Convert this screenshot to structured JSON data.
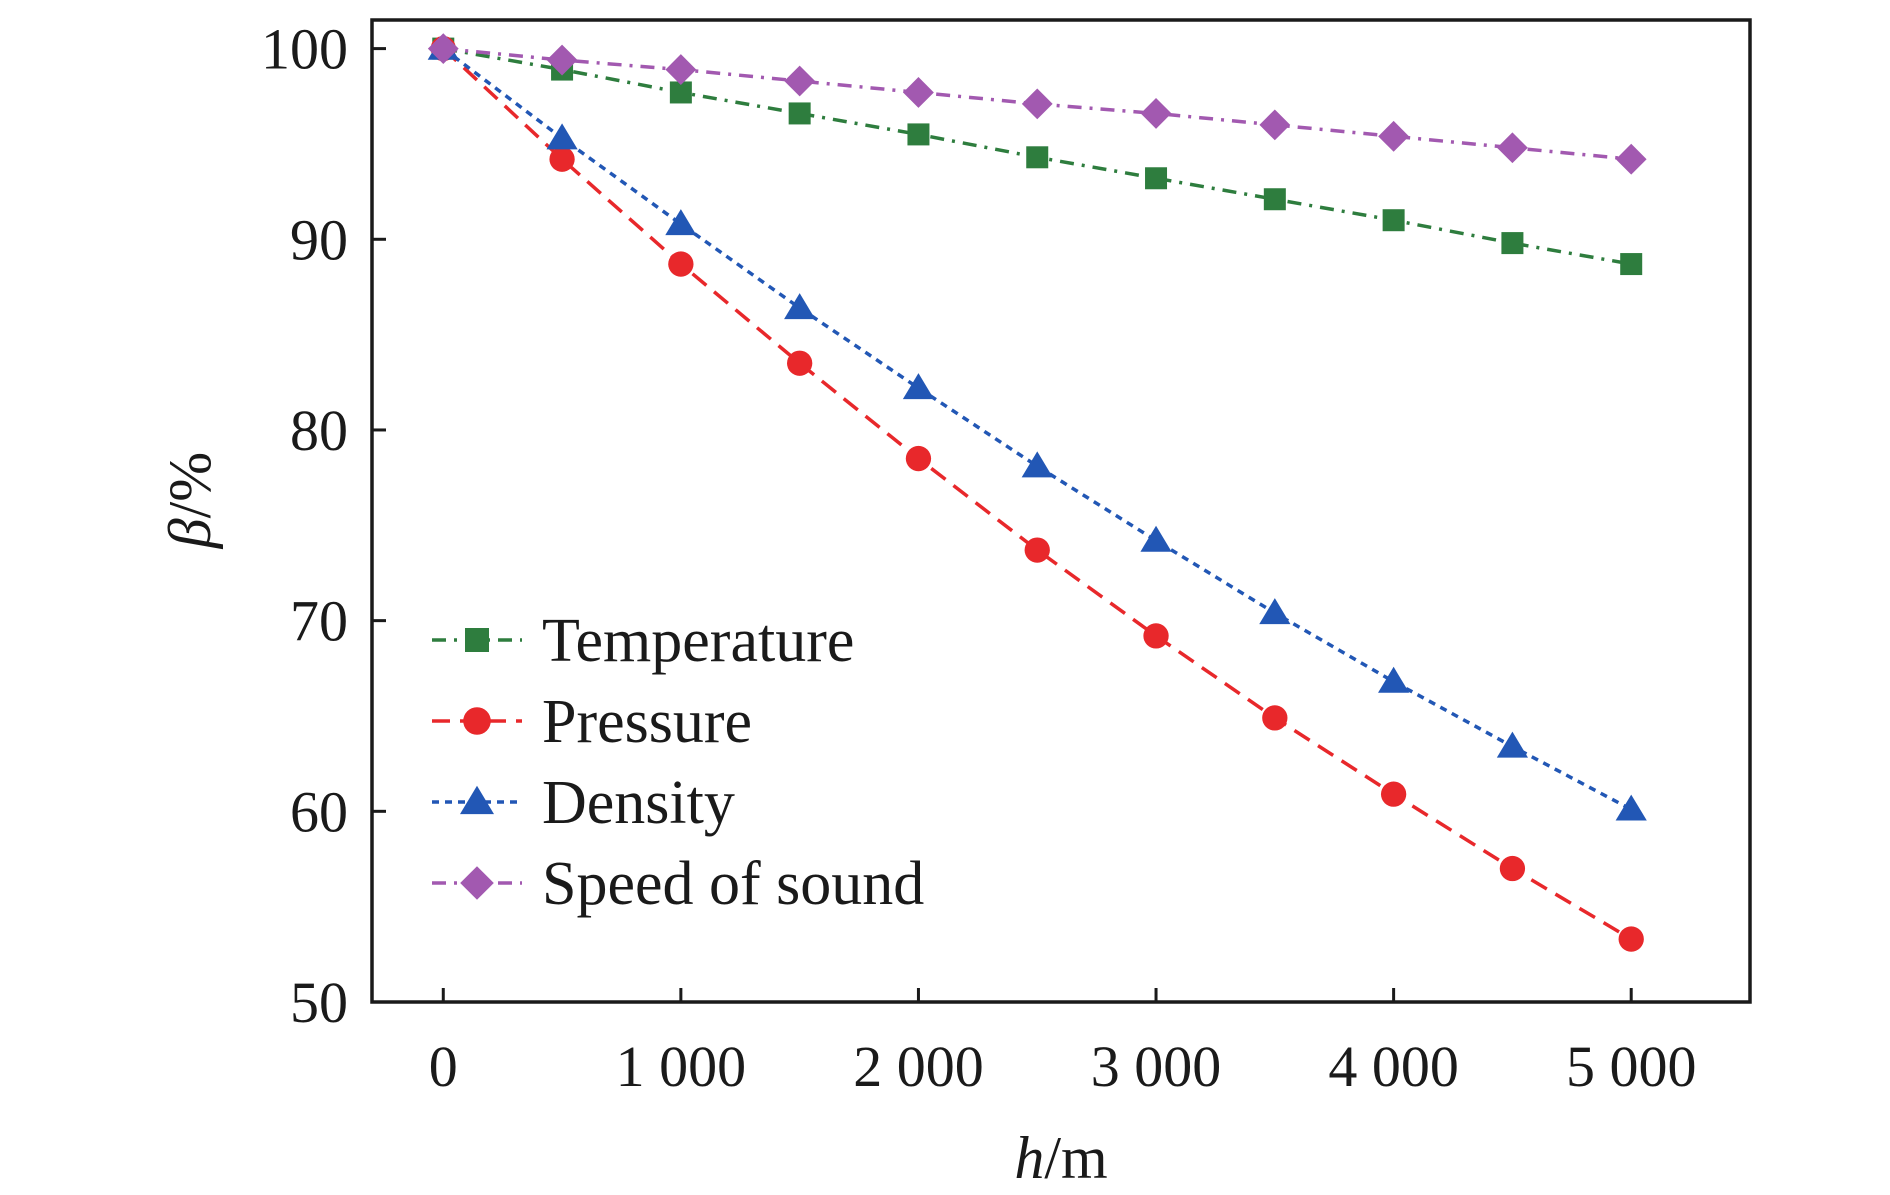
{
  "chart_data": {
    "type": "line",
    "xlabel_var": "h",
    "xlabel_unit": "/m",
    "ylabel_var": "β",
    "ylabel_unit": "/%",
    "xlim": [
      -300,
      5500
    ],
    "ylim": [
      50,
      101.5
    ],
    "x_ticks": [
      0,
      1000,
      2000,
      3000,
      4000,
      5000
    ],
    "x_tick_labels": [
      "0",
      "1 000",
      "2 000",
      "3 000",
      "4 000",
      "5 000"
    ],
    "y_ticks": [
      50,
      60,
      70,
      80,
      90,
      100
    ],
    "y_tick_labels": [
      "50",
      "60",
      "70",
      "80",
      "90",
      "100"
    ],
    "grid": false,
    "legend_position": "bottom-left",
    "x": [
      0,
      500,
      1000,
      1500,
      2000,
      2500,
      3000,
      3500,
      4000,
      4500,
      5000
    ],
    "series": [
      {
        "name": "Temperature",
        "color": "#2e7d3e",
        "marker": "square",
        "line_style": "dash-dot",
        "values": [
          100,
          98.9,
          97.7,
          96.6,
          95.5,
          94.3,
          93.2,
          92.1,
          91.0,
          89.8,
          88.7
        ]
      },
      {
        "name": "Pressure",
        "color": "#e8282b",
        "marker": "circle",
        "line_style": "dashed",
        "values": [
          100,
          94.2,
          88.7,
          83.5,
          78.5,
          73.7,
          69.2,
          64.9,
          60.9,
          57.0,
          53.3
        ]
      },
      {
        "name": "Density",
        "color": "#2257b5",
        "marker": "triangle",
        "line_style": "dotted",
        "values": [
          100,
          95.3,
          90.8,
          86.4,
          82.2,
          78.1,
          74.2,
          70.4,
          66.8,
          63.4,
          60.1
        ]
      },
      {
        "name": "Speed of sound",
        "color": "#a259b0",
        "marker": "diamond",
        "line_style": "dash-dot",
        "values": [
          100,
          99.4,
          98.9,
          98.3,
          97.7,
          97.1,
          96.6,
          96.0,
          95.4,
          94.8,
          94.2
        ]
      }
    ]
  }
}
